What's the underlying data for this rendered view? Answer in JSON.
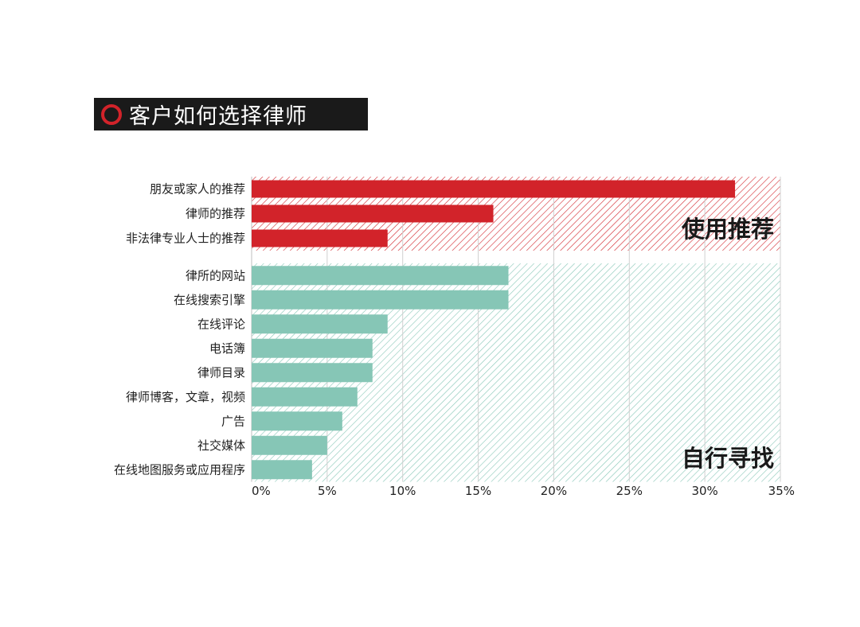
{
  "title": "客户如何选择律师",
  "colors": {
    "recommend": "#d2232a",
    "self": "#86c6b6",
    "grid": "#d0d0d0",
    "title_bg": "#1a1a1a"
  },
  "chart_data": {
    "type": "bar",
    "orientation": "horizontal",
    "xlim": [
      0,
      35
    ],
    "xticks": [
      0,
      5,
      10,
      15,
      20,
      25,
      30,
      35
    ],
    "xtick_labels": [
      "0%",
      "5%",
      "10%",
      "15%",
      "20%",
      "25%",
      "30%",
      "35%"
    ],
    "grid": true,
    "groups": [
      {
        "name": "使用推荐",
        "color": "#d2232a",
        "categories": [
          "朋友或家人的推荐",
          "律师的推荐",
          "非法律专业人士的推荐"
        ],
        "values": [
          32,
          16,
          9
        ]
      },
      {
        "name": "自行寻找",
        "color": "#86c6b6",
        "categories": [
          "律所的网站",
          "在线搜索引擎",
          "在线评论",
          "电话簿",
          "律师目录",
          "律师博客，文章，视频",
          "广告",
          "社交媒体",
          "在线地图服务或应用程序"
        ],
        "values": [
          17,
          17,
          9,
          8,
          8,
          7,
          6,
          5,
          4
        ]
      }
    ]
  }
}
